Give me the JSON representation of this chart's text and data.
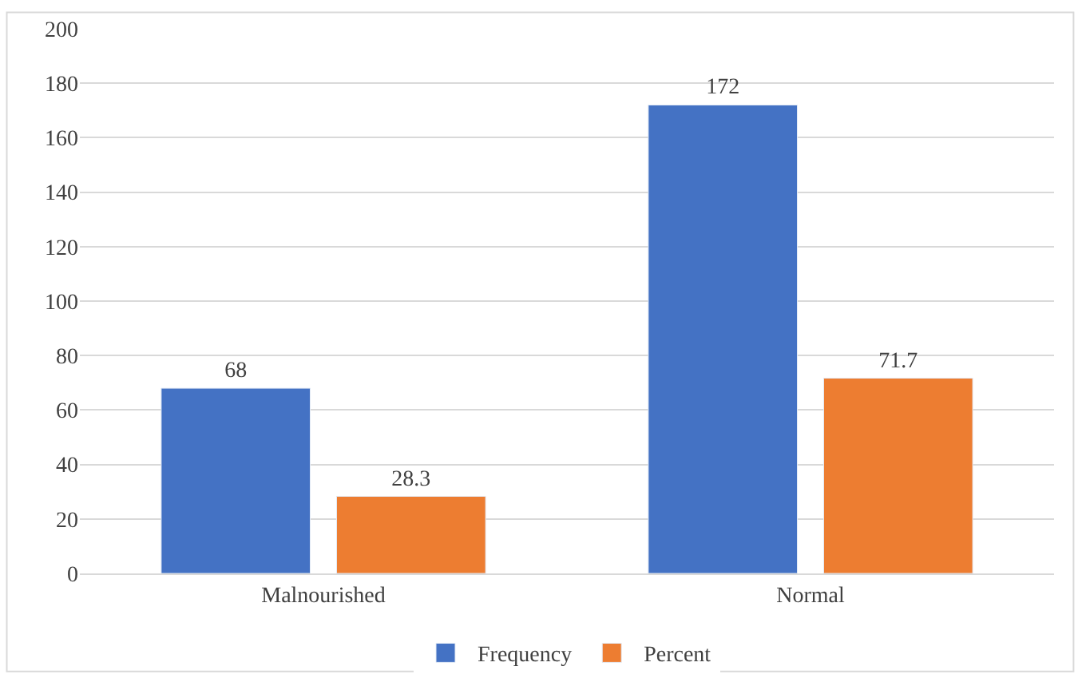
{
  "chart_data": {
    "type": "bar",
    "categories": [
      "Malnourished",
      "Normal"
    ],
    "series": [
      {
        "name": "Frequency",
        "color": "#4472c4",
        "values": [
          68,
          172
        ]
      },
      {
        "name": "Percent",
        "color": "#ed7d31",
        "values": [
          28.3,
          71.7
        ]
      }
    ],
    "ylim": [
      0,
      200
    ],
    "yticks": [
      0,
      20,
      40,
      60,
      80,
      100,
      120,
      140,
      160,
      180,
      200
    ],
    "grid": "y",
    "legend": "bottom",
    "data_labels": true
  }
}
